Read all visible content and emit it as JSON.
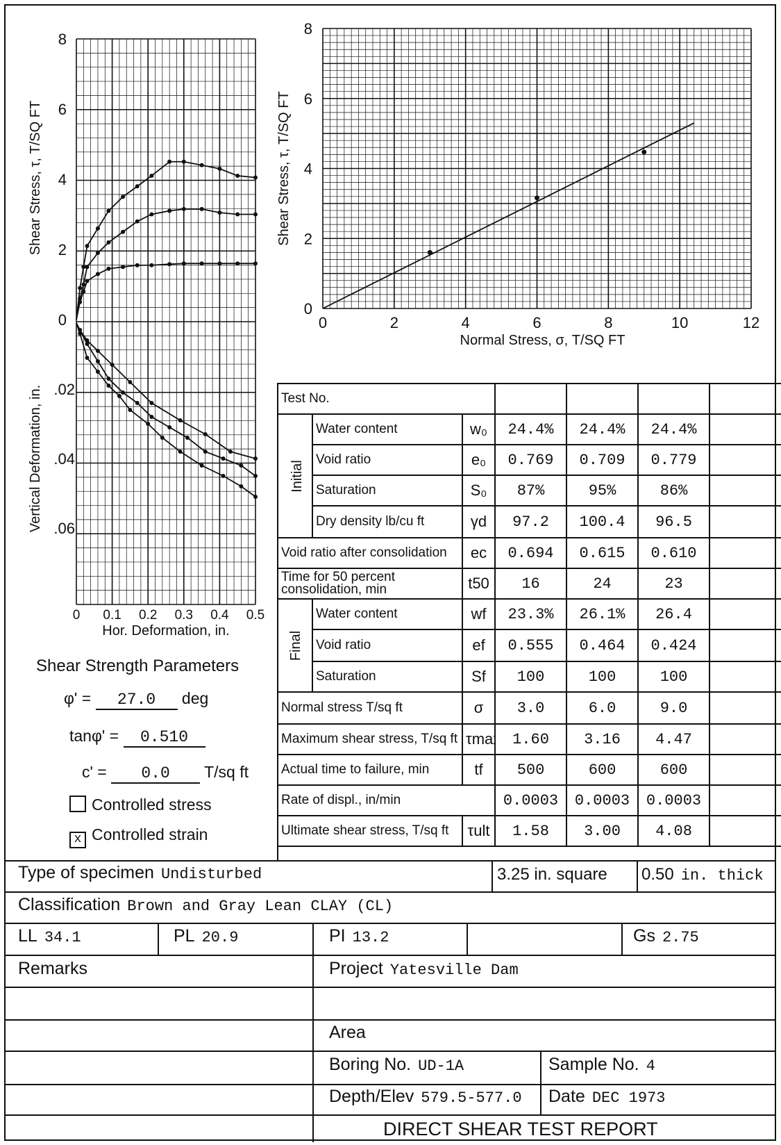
{
  "chart_data": [
    {
      "type": "line",
      "title": "",
      "xlabel": "",
      "ylabel": "Shear Stress, τ, T/SQ FT",
      "xlim": [
        0,
        0.5
      ],
      "ylim": [
        0,
        8
      ],
      "grid": true,
      "y_ticks": [
        "8",
        "6",
        "4",
        "2",
        "0"
      ],
      "series": [
        {
          "x": [
            0,
            0.01,
            0.02,
            0.03,
            0.06,
            0.09,
            0.13,
            0.17,
            0.21,
            0.26,
            0.3,
            0.35,
            0.4,
            0.45,
            0.5
          ],
          "y": [
            0,
            0.9,
            1.5,
            2.1,
            2.6,
            3.1,
            3.5,
            3.8,
            4.1,
            4.5,
            4.5,
            4.4,
            4.3,
            4.1,
            4.05
          ]
        },
        {
          "x": [
            0,
            0.01,
            0.02,
            0.03,
            0.06,
            0.09,
            0.13,
            0.17,
            0.21,
            0.26,
            0.3,
            0.35,
            0.4,
            0.45,
            0.5
          ],
          "y": [
            0,
            0.6,
            1.0,
            1.5,
            1.9,
            2.2,
            2.5,
            2.8,
            3.0,
            3.1,
            3.15,
            3.15,
            3.05,
            3.0,
            3.0
          ]
        },
        {
          "x": [
            0,
            0.01,
            0.02,
            0.03,
            0.06,
            0.09,
            0.13,
            0.17,
            0.21,
            0.26,
            0.3,
            0.35,
            0.4,
            0.45,
            0.5
          ],
          "y": [
            0,
            0.5,
            0.8,
            1.1,
            1.3,
            1.45,
            1.5,
            1.55,
            1.55,
            1.58,
            1.6,
            1.6,
            1.6,
            1.6,
            1.6
          ]
        }
      ]
    },
    {
      "type": "line",
      "title": "",
      "xlabel": "Hor. Deformation, in.",
      "ylabel": "Vertical Deformation, in.",
      "xlim": [
        0,
        0.5
      ],
      "ylim": [
        0,
        0.08
      ],
      "grid": true,
      "x_ticks": [
        "0",
        "0.1",
        "0.2",
        "0.3",
        "0.4",
        "0.5"
      ],
      "y_ticks": [
        "0",
        ".02",
        ".04",
        ".06"
      ],
      "series": [
        {
          "x": [
            0,
            0.01,
            0.03,
            0.06,
            0.09,
            0.12,
            0.15,
            0.2,
            0.24,
            0.29,
            0.35,
            0.41,
            0.46,
            0.5
          ],
          "y": [
            0.001,
            0.004,
            0.011,
            0.015,
            0.019,
            0.022,
            0.026,
            0.03,
            0.034,
            0.038,
            0.042,
            0.045,
            0.048,
            0.051
          ]
        },
        {
          "x": [
            0,
            0.01,
            0.03,
            0.06,
            0.09,
            0.13,
            0.17,
            0.21,
            0.26,
            0.31,
            0.36,
            0.41,
            0.46,
            0.5
          ],
          "y": [
            0.001,
            0.003,
            0.007,
            0.012,
            0.017,
            0.021,
            0.024,
            0.028,
            0.031,
            0.034,
            0.038,
            0.04,
            0.042,
            0.045
          ]
        },
        {
          "x": [
            0,
            0.01,
            0.03,
            0.06,
            0.1,
            0.15,
            0.21,
            0.29,
            0.36,
            0.43,
            0.5
          ],
          "y": [
            0.001,
            0.003,
            0.006,
            0.009,
            0.013,
            0.018,
            0.024,
            0.029,
            0.033,
            0.038,
            0.04
          ]
        }
      ]
    },
    {
      "type": "scatter",
      "title": "",
      "xlabel": "Normal Stress, σ, T/SQ FT",
      "ylabel": "Shear Stress, τ, T/SQ FT",
      "xlim": [
        0,
        12
      ],
      "ylim": [
        0,
        8
      ],
      "grid": true,
      "x_ticks": [
        "0",
        "2",
        "4",
        "6",
        "8",
        "10",
        "12"
      ],
      "y_ticks": [
        "8",
        "6",
        "4",
        "2",
        "0"
      ],
      "points": {
        "x": [
          3.0,
          6.0,
          9.0
        ],
        "y": [
          1.6,
          3.16,
          4.47
        ]
      },
      "fit_line": {
        "x": [
          0,
          10.4
        ],
        "y": [
          0,
          5.3
        ]
      }
    }
  ],
  "params": {
    "heading": "Shear Strength Parameters",
    "phi_label": "φ' =",
    "phi_value": "27.0",
    "phi_unit": "deg",
    "tan_label": "tanφ' =",
    "tan_value": "0.510",
    "c_label": "c' =",
    "c_value": "0.0",
    "c_unit": "T/sq ft",
    "stress_label": "Controlled stress",
    "stress_mark": "",
    "strain_label": "Controlled strain",
    "strain_mark": "x"
  },
  "table": {
    "test_no_label": "Test No.",
    "initial_label": "Initial",
    "final_label": "Final",
    "rows": [
      {
        "label": "Water content",
        "sym": "w₀",
        "values": [
          "24.4%",
          "24.4%",
          "24.4%"
        ]
      },
      {
        "label": "Void ratio",
        "sym": "e₀",
        "values": [
          "0.769",
          "0.709",
          "0.779"
        ]
      },
      {
        "label": "Saturation",
        "sym": "S₀",
        "values": [
          "87%",
          "95%",
          "86%"
        ]
      },
      {
        "label": "Dry density lb/cu ft",
        "sym": "γd",
        "values": [
          "97.2",
          "100.4",
          "96.5"
        ]
      },
      {
        "label": "Void ratio after consolidation",
        "sym": "ec",
        "values": [
          "0.694",
          "0.615",
          "0.610"
        ]
      },
      {
        "label": "Time for 50 percent consolidation, min",
        "sym": "t50",
        "values": [
          "16",
          "24",
          "23"
        ]
      },
      {
        "label": "Water content",
        "sym": "wf",
        "values": [
          "23.3%",
          "26.1%",
          "26.4"
        ]
      },
      {
        "label": "Void ratio",
        "sym": "ef",
        "values": [
          "0.555",
          "0.464",
          "0.424"
        ]
      },
      {
        "label": "Saturation",
        "sym": "Sf",
        "values": [
          "100",
          "100",
          "100"
        ]
      },
      {
        "label": "Normal stress T/sq ft",
        "sym": "σ",
        "values": [
          "3.0",
          "6.0",
          "9.0"
        ]
      },
      {
        "label": "Maximum shear stress, T/sq ft",
        "sym": "τmax",
        "values": [
          "1.60",
          "3.16",
          "4.47"
        ]
      },
      {
        "label": "Actual time to failure, min",
        "sym": "tf",
        "values": [
          "500",
          "600",
          "600"
        ]
      },
      {
        "label": "Rate of displ., in/min",
        "sym": "",
        "values": [
          "0.0003",
          "0.0003",
          "0.0003"
        ]
      },
      {
        "label": "Ultimate shear stress, T/sq ft",
        "sym": "τult",
        "values": [
          "1.58",
          "3.00",
          "4.08"
        ]
      }
    ]
  },
  "footer": {
    "type_label": "Type of specimen",
    "type_value": "Undisturbed",
    "size_value": "3.25 in. square",
    "thick_value": "0.50",
    "thick_unit": "in. thick",
    "class_label": "Classification",
    "class_value": "Brown and Gray Lean CLAY (CL)",
    "ll_label": "LL",
    "ll_value": "34.1",
    "pl_label": "PL",
    "pl_value": "20.9",
    "pi_label": "PI",
    "pi_value": "13.2",
    "gs_label": "Gs",
    "gs_value": "2.75",
    "remarks_label": "Remarks",
    "project_label": "Project",
    "project_value": "Yatesville Dam",
    "area_label": "Area",
    "boring_label": "Boring No.",
    "boring_value": "UD-1A",
    "sample_label": "Sample No.",
    "sample_value": "4",
    "depth_label": "Depth/Elev",
    "depth_value": "579.5-577.0",
    "date_label": "Date",
    "date_value": "DEC 1973",
    "report_title": "DIRECT SHEAR TEST REPORT"
  }
}
